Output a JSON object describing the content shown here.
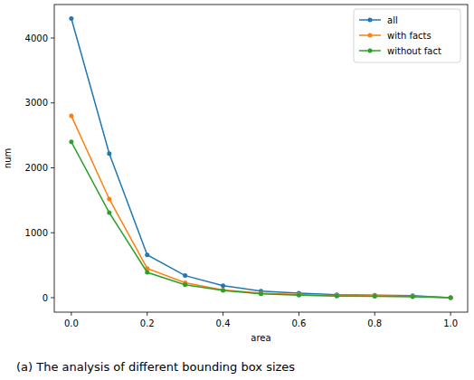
{
  "chart_data": {
    "type": "line",
    "x_label": "area",
    "y_label": "num",
    "caption": "(a) The analysis of different bounding box sizes",
    "x": [
      0,
      0.1,
      0.2,
      0.3,
      0.4,
      0.5,
      0.6,
      0.7,
      0.8,
      0.9,
      1.0
    ],
    "series": [
      {
        "name": "all",
        "color": "#1f77b4",
        "marker": "o",
        "values": [
          4300,
          2220,
          660,
          340,
          185,
          100,
          70,
          45,
          40,
          30,
          0
        ]
      },
      {
        "name": "with facts",
        "color": "#ff7f0e",
        "marker": "o",
        "values": [
          2800,
          1520,
          450,
          230,
          120,
          70,
          50,
          30,
          30,
          20,
          0
        ]
      },
      {
        "name": "without fact",
        "color": "#2ca02c",
        "marker": "o",
        "values": [
          2400,
          1310,
          390,
          200,
          110,
          60,
          40,
          25,
          20,
          15,
          0
        ]
      }
    ],
    "xlim": [
      -0.045,
      1.045
    ],
    "ylim": [
      -223,
      4516
    ],
    "xticks": [
      {
        "value": 0,
        "label": "0.0"
      },
      0.2,
      0.4,
      0.6,
      0.8,
      {
        "value": 1.0,
        "label": "1.0"
      }
    ],
    "yticks": [
      0,
      1000,
      2000,
      3000,
      4000
    ],
    "grid": false,
    "legend": "upper right"
  }
}
